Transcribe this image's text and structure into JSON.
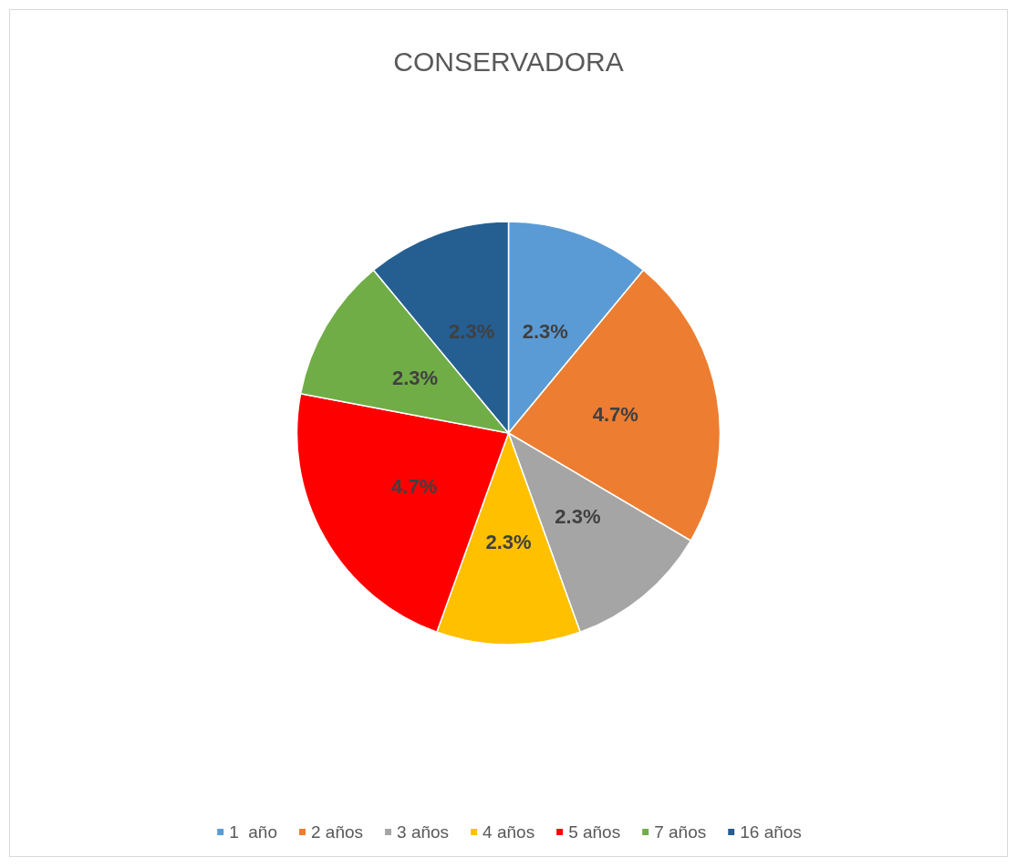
{
  "chart_data": {
    "type": "pie",
    "title": "CONSERVADORA",
    "categories": [
      "1  año",
      "2 años",
      "3 años",
      "4 años",
      "5 años",
      "7 años",
      "16 años"
    ],
    "values": [
      2.3,
      4.7,
      2.3,
      2.3,
      4.7,
      2.3,
      2.3
    ],
    "value_labels": [
      "2.3%",
      "4.7%",
      "2.3%",
      "2.3%",
      "4.7%",
      "2.3%",
      "2.3%"
    ],
    "colors": [
      "#5b9bd5",
      "#ed7d31",
      "#a5a5a5",
      "#ffc000",
      "#ff0000",
      "#70ad47",
      "#255e91"
    ],
    "legend": "bottom"
  }
}
